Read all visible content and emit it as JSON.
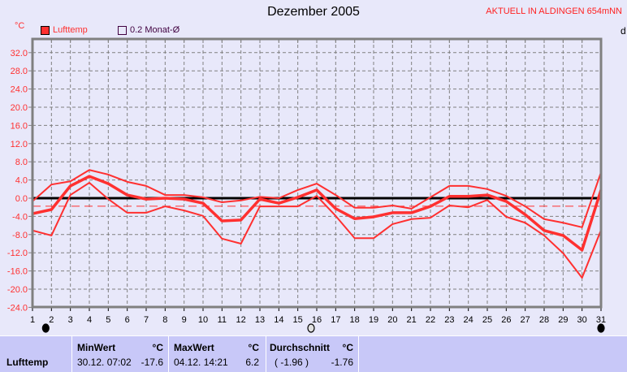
{
  "header": {
    "title": "Dezember 2005",
    "station": "AKTUELL IN ALDINGEN 654mNN",
    "unit": "°C",
    "right_cut": "d"
  },
  "legend": [
    {
      "label": "Lufttemp",
      "color": "#ff3030",
      "filled": true
    },
    {
      "label": "0.2 Monat-Ø",
      "color": "#400040",
      "filled": false
    }
  ],
  "colors": {
    "series": "#ff3030",
    "zero_line": "#000000",
    "grid": "#808080",
    "background": "#e8e8fa",
    "panel": "#c8c8f8"
  },
  "chart_data": {
    "type": "line",
    "title": "Dezember 2005",
    "ylabel": "°C",
    "ylim": [
      -24,
      35
    ],
    "yticks": [
      "32.0",
      "28.0",
      "24.0",
      "20.0",
      "16.0",
      "12.0",
      "8.0",
      "4.0",
      "0.0",
      "-4.0",
      "-8.0",
      "-12.0",
      "-16.0",
      "-20.0",
      "-24.0"
    ],
    "x": [
      1,
      2,
      3,
      4,
      5,
      6,
      7,
      8,
      9,
      10,
      11,
      12,
      13,
      14,
      15,
      16,
      17,
      18,
      19,
      20,
      21,
      22,
      23,
      24,
      25,
      26,
      27,
      28,
      29,
      30,
      31
    ],
    "grid": true,
    "series": [
      {
        "role": "max",
        "values": [
          -0.7,
          3.0,
          3.7,
          6.2,
          5.2,
          3.6,
          2.7,
          0.7,
          0.7,
          0.2,
          -0.9,
          -0.5,
          0.3,
          0.0,
          1.8,
          3.2,
          0.7,
          -2.1,
          -2.1,
          -1.6,
          -2.3,
          0.2,
          2.7,
          2.7,
          2.0,
          0.5,
          -1.8,
          -4.6,
          -5.4,
          -6.4,
          5.7
        ]
      },
      {
        "role": "mean",
        "values": [
          -3.4,
          -2.5,
          2.7,
          4.8,
          3.2,
          0.7,
          -0.2,
          0.0,
          -0.2,
          -1.1,
          -5.0,
          -4.8,
          -0.2,
          -1.1,
          0.2,
          1.8,
          -2.3,
          -4.5,
          -4.1,
          -3.2,
          -3.2,
          -1.8,
          0.4,
          0.4,
          0.7,
          -0.7,
          -3.6,
          -7.1,
          -8.2,
          -11.4,
          1.8
        ]
      },
      {
        "role": "min",
        "values": [
          -7.1,
          -8.2,
          0.7,
          3.4,
          -0.2,
          -3.2,
          -3.2,
          -1.8,
          -2.7,
          -3.9,
          -8.9,
          -10.0,
          -1.8,
          -1.8,
          -1.8,
          0.5,
          -3.9,
          -8.8,
          -8.8,
          -5.7,
          -4.6,
          -4.3,
          -1.6,
          -2.0,
          -0.4,
          -4.1,
          -5.4,
          -8.2,
          -12.1,
          -17.5,
          -7.0
        ]
      }
    ],
    "month_average": -1.76,
    "markers": [
      {
        "day": 1.7,
        "type": "filled"
      },
      {
        "day": 15.7,
        "type": "hollow"
      },
      {
        "day": 31,
        "type": "filled"
      }
    ]
  },
  "stats": {
    "row_label": "Lufttemp",
    "min": {
      "header": "MinWert",
      "unit": "°C",
      "time": "30.12.  07:02",
      "value": "-17.6"
    },
    "max": {
      "header": "MaxWert",
      "unit": "°C",
      "time": "04.12.  14:21",
      "value": "6.2"
    },
    "avg": {
      "header": "Durchschnitt",
      "unit": "°C",
      "extra": "( -1.96 )",
      "value": "-1.76"
    }
  }
}
